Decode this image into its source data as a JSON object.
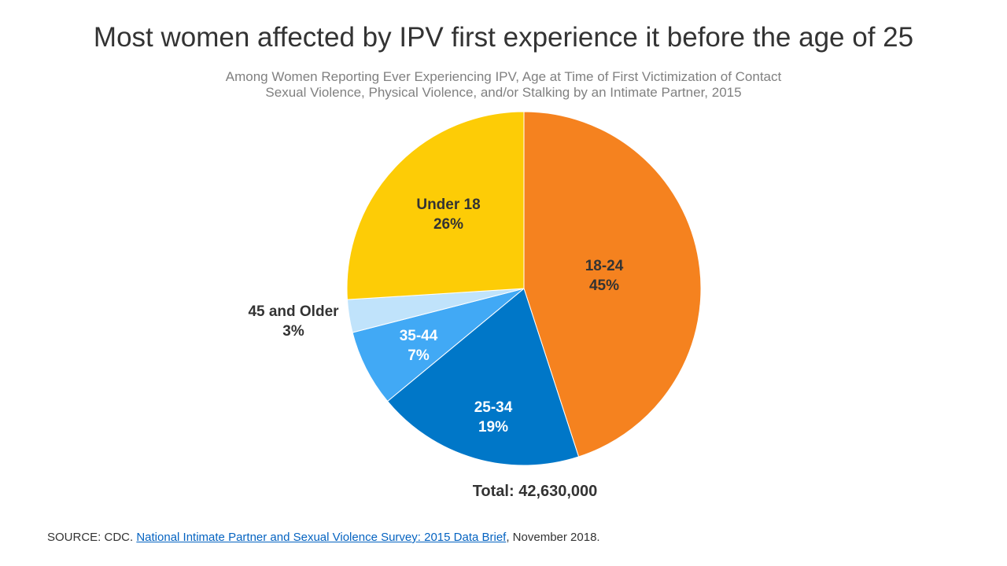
{
  "chart_data": {
    "type": "pie",
    "title": "Most women affected by IPV first experience it before the age of 25",
    "subtitle_lines": [
      "Among Women Reporting Ever Experiencing IPV, Age at Time of First Victimization of Contact",
      "Sexual Violence, Physical Violence, and/or Stalking by an Intimate Partner,  2015"
    ],
    "slices": [
      {
        "label": "18-24",
        "value": 45,
        "value_label": "45%",
        "color": "#F5821F",
        "label_color": "#333333"
      },
      {
        "label": "25-34",
        "value": 19,
        "value_label": "19%",
        "color": "#0077C8",
        "label_color": "#FFFFFF"
      },
      {
        "label": "35-44",
        "value": 7,
        "value_label": "7%",
        "color": "#41A9F5",
        "label_color": "#FFFFFF"
      },
      {
        "label": "45 and Older",
        "value": 3,
        "value_label": "3%",
        "color": "#C0E3FB",
        "label_color": "#333333"
      },
      {
        "label": "Under 18",
        "value": 26,
        "value_label": "26%",
        "color": "#FDCC06",
        "label_color": "#333333"
      }
    ],
    "start": "12 o'clock, clockwise",
    "total_label": "Total: 42,630,000"
  },
  "source": {
    "prefix": "SOURCE: CDC. ",
    "link_text": "National Intimate Partner and Sexual Violence Survey: 2015 Data Brief",
    "suffix": ", November 2018."
  }
}
